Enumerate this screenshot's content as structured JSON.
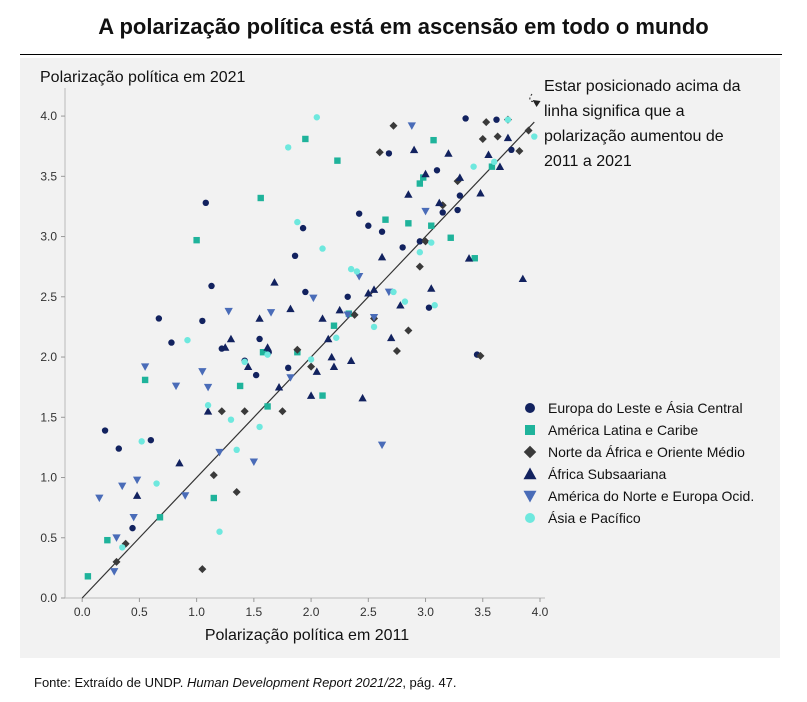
{
  "header": {
    "title": "A polarização política está em ascensão em todo o mundo"
  },
  "source": {
    "prefix": "Fonte: Extraído de UNDP. ",
    "title": "Human Development Report 2021/22",
    "suffix": ", pág. 47."
  },
  "colors": {
    "navy": "#12225f",
    "teal": "#1fb39b",
    "dark": "#3a3a3a",
    "blue": "#4a6cb8",
    "cyan": "#6ee8de",
    "panel": "#f2f2f2"
  },
  "chart_data": {
    "type": "scatter",
    "title": "A polarização política está em ascensão em todo o mundo",
    "xlabel": "Polarização política em 2011",
    "ylabel": "Polarização política em 2021",
    "xlim": [
      -0.15,
      4.0
    ],
    "ylim": [
      0.0,
      4.15
    ],
    "xticks": [
      "0.0",
      "0.5",
      "1.0",
      "1.5",
      "2.0",
      "2.5",
      "3.0",
      "3.5",
      "4.0"
    ],
    "yticks": [
      "0.0",
      "0.5",
      "1.0",
      "1.5",
      "2.0",
      "2.5",
      "3.0",
      "3.5",
      "4.0"
    ],
    "grid": false,
    "legend_position": "right",
    "annotation": {
      "text": [
        "Estar posicionado acima da",
        "linha significa que a",
        "polarização aumentou de",
        "2011 a 2021"
      ],
      "arrow_to": [
        3.97,
        4.05
      ]
    },
    "reference_line": {
      "from": [
        0.0,
        0.0
      ],
      "to": [
        3.95,
        3.95
      ]
    },
    "series": [
      {
        "name": "Europa do Leste e Ásia Central",
        "marker": "circle",
        "color": "#12225f",
        "x": [
          0.2,
          0.32,
          0.44,
          0.6,
          0.67,
          1.08,
          1.13,
          1.22,
          1.55,
          1.63,
          1.8,
          1.95,
          1.93,
          2.42,
          2.5,
          2.68,
          2.8,
          2.95,
          3.03,
          3.15,
          3.3,
          3.35,
          3.62,
          3.75,
          3.45,
          1.05,
          0.78,
          1.42,
          1.52,
          1.86,
          2.32,
          2.62,
          3.1,
          3.28
        ],
        "y": [
          1.39,
          1.24,
          0.58,
          1.31,
          2.32,
          3.28,
          2.59,
          2.07,
          2.15,
          2.04,
          1.91,
          2.54,
          3.07,
          3.19,
          3.09,
          3.69,
          2.91,
          2.96,
          2.41,
          3.2,
          3.34,
          3.98,
          3.97,
          3.72,
          2.02,
          2.3,
          2.12,
          1.97,
          1.85,
          2.84,
          2.5,
          3.04,
          3.55,
          3.22
        ]
      },
      {
        "name": "América Latina e Caribe",
        "marker": "square",
        "color": "#1fb39b",
        "x": [
          0.05,
          0.22,
          0.55,
          0.68,
          1.0,
          1.15,
          1.38,
          1.56,
          1.58,
          1.62,
          1.88,
          1.95,
          2.1,
          2.2,
          2.23,
          2.33,
          2.65,
          2.95,
          2.98,
          3.05,
          3.07,
          3.22,
          3.43,
          3.58,
          2.85
        ],
        "y": [
          0.18,
          0.48,
          1.81,
          0.67,
          2.97,
          0.83,
          1.76,
          3.32,
          2.04,
          1.59,
          2.04,
          3.81,
          1.68,
          2.26,
          3.63,
          2.36,
          3.14,
          3.44,
          3.49,
          3.09,
          3.8,
          2.99,
          2.82,
          3.58,
          3.11
        ]
      },
      {
        "name": "Norte da África e Oriente Médio",
        "marker": "diamond",
        "color": "#3a3a3a",
        "x": [
          0.3,
          0.38,
          1.05,
          1.15,
          1.22,
          1.35,
          1.42,
          1.75,
          1.88,
          2.0,
          2.38,
          2.55,
          2.6,
          2.72,
          2.75,
          2.85,
          2.95,
          3.0,
          3.15,
          3.28,
          3.48,
          3.53,
          3.63,
          3.72,
          3.82,
          3.9,
          3.5
        ],
        "y": [
          0.3,
          0.45,
          0.24,
          1.02,
          1.55,
          0.88,
          1.55,
          1.55,
          2.06,
          1.92,
          2.35,
          2.32,
          3.7,
          3.92,
          2.05,
          2.22,
          2.75,
          2.96,
          3.26,
          3.46,
          2.01,
          3.95,
          3.83,
          3.97,
          3.71,
          3.88,
          3.81
        ]
      },
      {
        "name": "África Subsaariana",
        "marker": "triangle-up",
        "color": "#12225f",
        "x": [
          0.48,
          0.85,
          1.1,
          1.25,
          1.3,
          1.45,
          1.55,
          1.62,
          1.68,
          1.72,
          2.0,
          2.1,
          2.15,
          2.2,
          2.25,
          2.35,
          2.45,
          2.5,
          2.55,
          2.62,
          2.7,
          2.78,
          2.85,
          2.9,
          3.0,
          3.05,
          3.12,
          3.2,
          3.3,
          3.38,
          3.48,
          3.55,
          3.65,
          3.72,
          3.85,
          1.82,
          2.05,
          2.18
        ],
        "y": [
          0.85,
          1.12,
          1.55,
          2.08,
          2.15,
          1.92,
          2.32,
          2.08,
          2.62,
          1.75,
          1.68,
          2.32,
          2.15,
          1.92,
          2.39,
          1.97,
          1.66,
          2.53,
          2.56,
          2.83,
          2.16,
          2.43,
          3.35,
          3.72,
          3.52,
          2.57,
          3.28,
          3.69,
          3.49,
          2.82,
          3.36,
          3.68,
          3.58,
          3.82,
          2.65,
          2.4,
          1.88,
          2.0
        ]
      },
      {
        "name": "América do Norte e Europa Ocid.",
        "marker": "triangle-down",
        "color": "#4a6cb8",
        "x": [
          0.15,
          0.28,
          0.35,
          0.45,
          0.48,
          0.55,
          0.82,
          0.9,
          1.05,
          1.2,
          1.28,
          1.5,
          1.65,
          1.82,
          2.02,
          2.32,
          2.42,
          2.55,
          2.62,
          2.68,
          2.88,
          3.0,
          1.1,
          0.3
        ],
        "y": [
          0.83,
          0.22,
          0.93,
          0.67,
          0.98,
          1.92,
          1.76,
          0.85,
          1.88,
          1.21,
          2.38,
          1.13,
          2.37,
          1.83,
          2.49,
          2.35,
          2.67,
          2.33,
          1.27,
          2.54,
          3.92,
          3.21,
          1.75,
          0.5
        ]
      },
      {
        "name": "Ásia e Pacífico",
        "marker": "circle",
        "color": "#6ee8de",
        "x": [
          0.35,
          0.52,
          0.65,
          0.92,
          1.1,
          1.2,
          1.35,
          1.42,
          1.55,
          1.62,
          1.8,
          1.88,
          2.05,
          2.1,
          2.22,
          2.35,
          2.4,
          2.55,
          2.72,
          2.82,
          2.95,
          3.05,
          3.08,
          3.42,
          3.6,
          3.72,
          3.95,
          2.0,
          1.3
        ],
        "y": [
          0.42,
          1.3,
          0.95,
          2.14,
          1.6,
          0.55,
          1.23,
          1.96,
          1.42,
          2.02,
          3.74,
          3.12,
          3.99,
          2.9,
          2.16,
          2.73,
          2.71,
          2.25,
          2.54,
          2.46,
          2.87,
          2.95,
          2.43,
          3.58,
          3.62,
          3.97,
          3.83,
          1.98,
          1.48
        ]
      }
    ]
  }
}
